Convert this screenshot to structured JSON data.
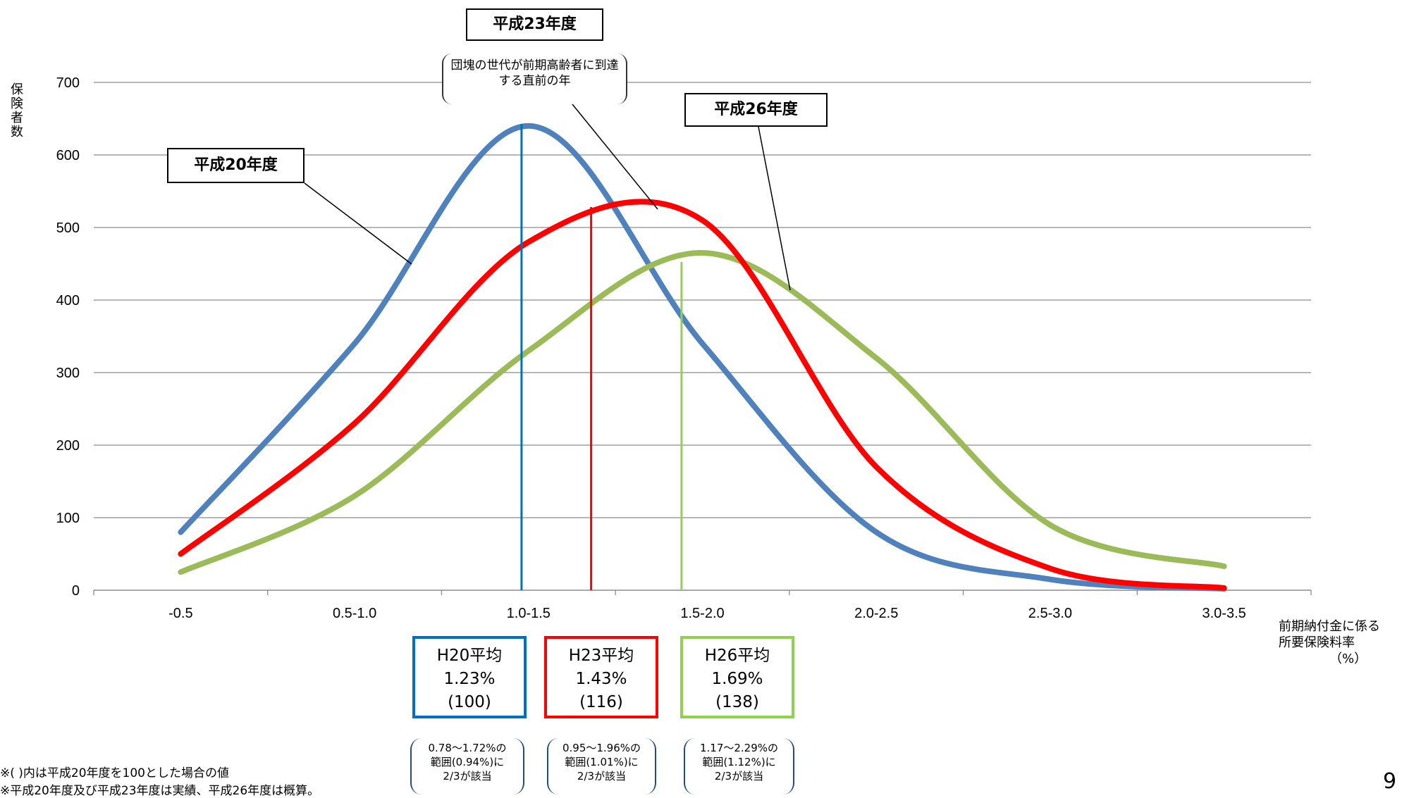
{
  "chart_data": {
    "type": "line",
    "categories": [
      "-0.5",
      "0.5-1.0",
      "1.0-1.5",
      "1.5-2.0",
      "2.0-2.5",
      "2.5-3.0",
      "3.0-3.5"
    ],
    "ylim": [
      0,
      700
    ],
    "yticks": [
      0,
      100,
      200,
      300,
      400,
      500,
      600,
      700
    ],
    "grid": true,
    "ylabel": "保険者数",
    "xlabel": "前期納付金に係る所要保険料率 （%）",
    "series": [
      {
        "label_ref": "平成20年度",
        "color": "#4f81bd",
        "x": [
          0,
          1,
          2,
          3,
          4,
          5,
          6
        ],
        "values": [
          80,
          340,
          640,
          340,
          80,
          15,
          2
        ],
        "average": 1.23
      },
      {
        "label_ref": "平成23年度",
        "color": "#ff0000",
        "x": [
          0,
          1,
          2,
          3,
          4,
          5,
          6
        ],
        "values": [
          50,
          230,
          480,
          510,
          170,
          30,
          3
        ],
        "average": 1.43
      },
      {
        "label_ref": "平成26年度",
        "color": "#9bbb59",
        "x": [
          0,
          1,
          2,
          3,
          4,
          5,
          6
        ],
        "values": [
          25,
          130,
          330,
          465,
          320,
          90,
          33
        ],
        "average": 1.69
      }
    ]
  },
  "callouts": {
    "h20": "平成20年度",
    "h23": "平成23年度",
    "h26": "平成26年度",
    "h23_note": "団塊の世代が前期高齢者に到達する直前の年"
  },
  "axis": {
    "ylabel": "保険者数",
    "xlabel_line1": "前期納付金に係る",
    "xlabel_line2": "所要保険料率",
    "xlabel_unit": "（%）"
  },
  "averages": [
    {
      "title": "H20平均",
      "rate": "1.23%",
      "index": "(100)",
      "color": "#0070c0"
    },
    {
      "title": "H23平均",
      "rate": "1.43%",
      "index": "(116)",
      "color": "#ff0000"
    },
    {
      "title": "H26平均",
      "rate": "1.69%",
      "index": "(138)",
      "color": "#92d050"
    }
  ],
  "ranges": [
    {
      "line1": "0.78～1.72%の",
      "line2": "範囲(0.94%)に",
      "line3": "2/3が該当"
    },
    {
      "line1": "0.95～1.96%の",
      "line2": "範囲(1.01%)に",
      "line3": "2/3が該当"
    },
    {
      "line1": "1.17～2.29%の",
      "line2": "範囲(1.12%)に",
      "line3": "2/3が該当"
    }
  ],
  "notes": {
    "n1": "※( )内は平成20年度を100とした場合の値",
    "n2": "※平成20年度及び平成23年度は実績、平成26年度は概算。"
  },
  "page_number": "9"
}
